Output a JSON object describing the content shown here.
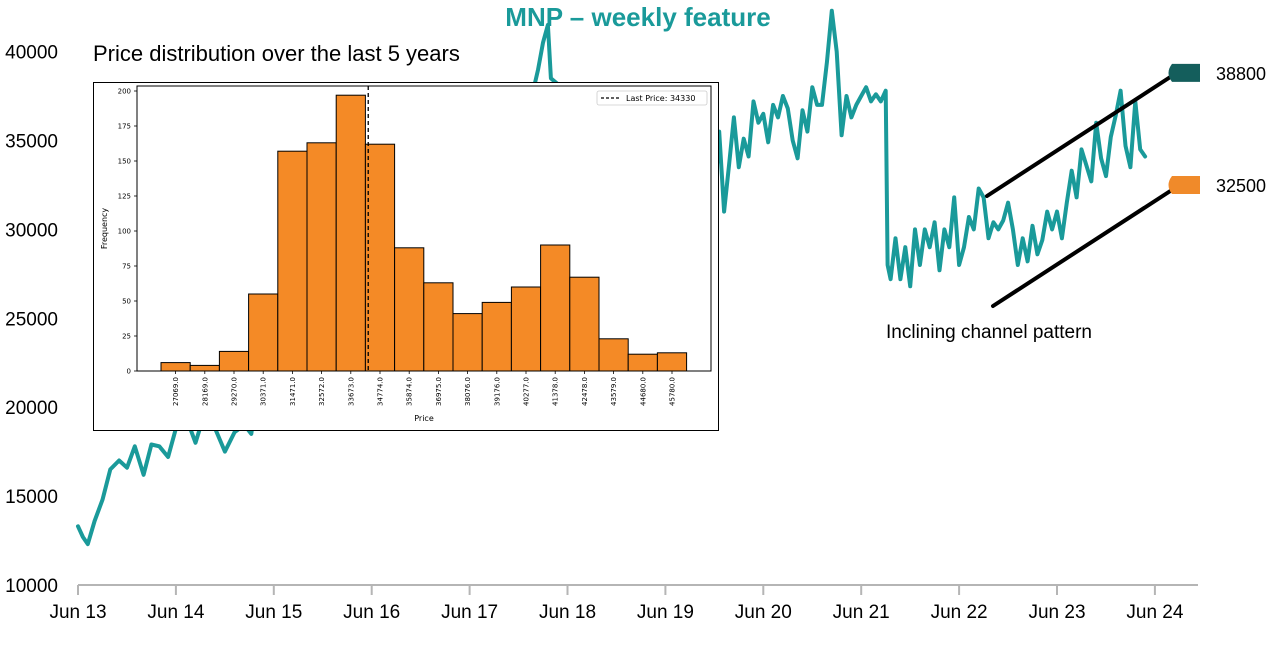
{
  "chart_data": [
    {
      "type": "line",
      "title": "MNP – weekly feature",
      "xlabel": "",
      "ylabel": "",
      "ylim": [
        10000,
        42500
      ],
      "y_ticks": [
        "10000",
        "15000",
        "20000",
        "25000",
        "30000",
        "35000",
        "40000"
      ],
      "x_ticks": [
        "Jun 13",
        "Jun 14",
        "Jun 15",
        "Jun 16",
        "Jun 17",
        "Jun 18",
        "Jun 19",
        "Jun 20",
        "Jun 21",
        "Jun 22",
        "Jun 23",
        "Jun 24"
      ],
      "line_color": "#1a9a9a",
      "series": [
        {
          "values": [
            [
              2013.5,
              13300
            ],
            [
              2013.55,
              12700
            ],
            [
              2013.6,
              12300
            ],
            [
              2013.67,
              13600
            ],
            [
              2013.75,
              14800
            ],
            [
              2013.83,
              16500
            ],
            [
              2013.92,
              17000
            ],
            [
              2014.0,
              16600
            ],
            [
              2014.08,
              17800
            ],
            [
              2014.17,
              16200
            ],
            [
              2014.25,
              17900
            ],
            [
              2014.33,
              17800
            ],
            [
              2014.42,
              17200
            ],
            [
              2014.5,
              18800
            ],
            [
              2014.6,
              19500
            ],
            [
              2014.7,
              18000
            ],
            [
              2014.8,
              19800
            ],
            [
              2014.9,
              18800
            ],
            [
              2015.0,
              17500
            ],
            [
              2015.1,
              18600
            ],
            [
              2015.2,
              19000
            ],
            [
              2015.27,
              18500
            ],
            [
              2015.33,
              21000
            ],
            [
              2017.2,
              27000
            ],
            [
              2018.15,
              37800
            ],
            [
              2018.2,
              39000
            ],
            [
              2018.25,
              40500
            ],
            [
              2018.3,
              41500
            ],
            [
              2018.33,
              38500
            ],
            [
              2019.5,
              33000
            ],
            [
              2019.55,
              31500
            ],
            [
              2019.6,
              33500
            ],
            [
              2019.65,
              31000
            ],
            [
              2019.7,
              30200
            ],
            [
              2019.75,
              26000
            ],
            [
              2019.8,
              31800
            ],
            [
              2019.85,
              32500
            ],
            [
              2019.9,
              30500
            ],
            [
              2019.95,
              33800
            ],
            [
              2020.0,
              31500
            ],
            [
              2020.05,
              35500
            ],
            [
              2020.1,
              31000
            ],
            [
              2020.15,
              33600
            ],
            [
              2020.2,
              36300
            ],
            [
              2020.25,
              33500
            ],
            [
              2020.3,
              35100
            ],
            [
              2020.35,
              34100
            ],
            [
              2020.4,
              37200
            ],
            [
              2020.45,
              36000
            ],
            [
              2020.5,
              36500
            ],
            [
              2020.55,
              34900
            ],
            [
              2020.6,
              37000
            ],
            [
              2020.65,
              36300
            ],
            [
              2020.7,
              37500
            ],
            [
              2020.75,
              36800
            ],
            [
              2020.8,
              35000
            ],
            [
              2020.85,
              34000
            ],
            [
              2020.9,
              36700
            ],
            [
              2020.95,
              35500
            ],
            [
              2021.0,
              38000
            ],
            [
              2021.05,
              37000
            ],
            [
              2021.1,
              37000
            ],
            [
              2021.15,
              39400
            ],
            [
              2021.2,
              42300
            ],
            [
              2021.25,
              40000
            ],
            [
              2021.3,
              35300
            ],
            [
              2021.35,
              37500
            ],
            [
              2021.4,
              36300
            ],
            [
              2021.45,
              37000
            ],
            [
              2021.5,
              37500
            ],
            [
              2021.55,
              38000
            ],
            [
              2021.6,
              37200
            ],
            [
              2021.65,
              37600
            ],
            [
              2021.7,
              37200
            ],
            [
              2021.75,
              37800
            ],
            [
              2021.77,
              28000
            ],
            [
              2021.8,
              27200
            ],
            [
              2021.85,
              29500
            ],
            [
              2021.9,
              27200
            ],
            [
              2021.95,
              29000
            ],
            [
              2022.0,
              26800
            ],
            [
              2022.05,
              30000
            ],
            [
              2022.1,
              28000
            ],
            [
              2022.15,
              30000
            ],
            [
              2022.2,
              29000
            ],
            [
              2022.25,
              30400
            ],
            [
              2022.3,
              27700
            ],
            [
              2022.35,
              30000
            ],
            [
              2022.4,
              29000
            ],
            [
              2022.45,
              31800
            ],
            [
              2022.5,
              28000
            ],
            [
              2022.55,
              29000
            ],
            [
              2022.6,
              30700
            ],
            [
              2022.65,
              30000
            ],
            [
              2022.7,
              32300
            ],
            [
              2022.75,
              31800
            ],
            [
              2022.8,
              29500
            ],
            [
              2022.85,
              30400
            ],
            [
              2022.9,
              30000
            ],
            [
              2022.95,
              30500
            ],
            [
              2023.0,
              31500
            ],
            [
              2023.05,
              30000
            ],
            [
              2023.1,
              28000
            ],
            [
              2023.15,
              29500
            ],
            [
              2023.2,
              28200
            ],
            [
              2023.25,
              30200
            ],
            [
              2023.3,
              28600
            ],
            [
              2023.35,
              29400
            ],
            [
              2023.4,
              31000
            ],
            [
              2023.45,
              30000
            ],
            [
              2023.5,
              31000
            ],
            [
              2023.55,
              29500
            ],
            [
              2023.6,
              31500
            ],
            [
              2023.65,
              33300
            ],
            [
              2023.7,
              31800
            ],
            [
              2023.75,
              34500
            ],
            [
              2023.8,
              33600
            ],
            [
              2023.85,
              32700
            ],
            [
              2023.9,
              36000
            ],
            [
              2023.95,
              34000
            ],
            [
              2024.0,
              33000
            ],
            [
              2024.05,
              35200
            ],
            [
              2024.1,
              36400
            ],
            [
              2024.15,
              37800
            ],
            [
              2024.2,
              34700
            ],
            [
              2024.25,
              33500
            ],
            [
              2024.3,
              37200
            ],
            [
              2024.35,
              34500
            ],
            [
              2024.4,
              34100
            ]
          ]
        }
      ],
      "annotations": {
        "upper_value": "38800",
        "lower_value": "32500",
        "upper_color": "#145e5c",
        "lower_color": "#f08a2a",
        "pattern_label": "Inclining channel pattern"
      }
    },
    {
      "type": "bar",
      "title": "Price distribution over the last 5 years",
      "xlabel": "Price",
      "ylabel": "Frequency",
      "ylim": [
        0,
        200
      ],
      "y_ticks": [
        "0",
        "25",
        "50",
        "75",
        "100",
        "125",
        "150",
        "175",
        "200"
      ],
      "bar_color": "#f48a26",
      "categories": [
        "27069.0",
        "28169.0",
        "29270.0",
        "30371.0",
        "31471.0",
        "32572.0",
        "33673.0",
        "34774.0",
        "35874.0",
        "36975.0",
        "38076.0",
        "39176.0",
        "40277.0",
        "41378.0",
        "42478.0",
        "43579.0",
        "44680.0",
        "45780.0"
      ],
      "values": [
        6,
        4,
        14,
        55,
        157,
        163,
        197,
        162,
        88,
        63,
        41,
        49,
        60,
        90,
        67,
        23,
        12,
        13
      ],
      "last_price": 34330,
      "legend": "Last Price: 34330"
    }
  ]
}
